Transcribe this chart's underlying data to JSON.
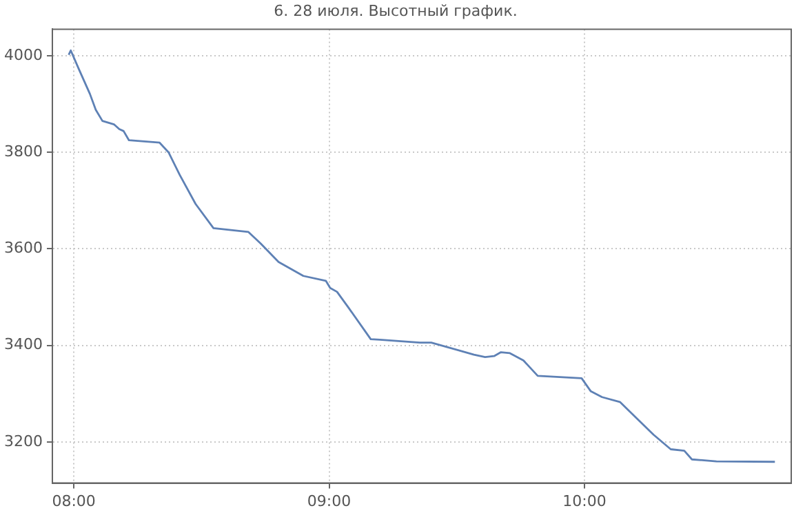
{
  "chart_data": {
    "type": "line",
    "title": "6. 28 июля. Высотный график.",
    "x": [
      7.98,
      7.988,
      8.02,
      8.063,
      8.086,
      8.112,
      8.157,
      8.178,
      8.195,
      8.216,
      8.336,
      8.371,
      8.415,
      8.477,
      8.547,
      8.684,
      8.732,
      8.802,
      8.899,
      8.987,
      9.004,
      9.031,
      9.075,
      9.163,
      9.198,
      9.356,
      9.4,
      9.567,
      9.611,
      9.646,
      9.673,
      9.708,
      9.761,
      9.817,
      9.989,
      10.025,
      10.069,
      10.139,
      10.201,
      10.271,
      10.338,
      10.391,
      10.421,
      10.517,
      10.746
    ],
    "series": [
      {
        "color": "#5e81b5",
        "values": [
          4002,
          4011,
          3972,
          3921,
          3888,
          3865,
          3858,
          3848,
          3844,
          3825,
          3820,
          3800,
          3753,
          3693,
          3643,
          3635,
          3611,
          3573,
          3544,
          3534,
          3519,
          3511,
          3479,
          3413,
          3412,
          3406,
          3406,
          3381,
          3376,
          3378,
          3386,
          3384,
          3369,
          3337,
          3332,
          3305,
          3293,
          3283,
          3251,
          3215,
          3185,
          3182,
          3164,
          3160,
          3159
        ]
      }
    ],
    "xlim": [
      7.916,
      10.81
    ],
    "xticks": [
      {
        "value": 8,
        "label": "08:00"
      },
      {
        "value": 9,
        "label": "09:00"
      },
      {
        "value": 10,
        "label": "10:00"
      }
    ],
    "ylim": [
      3115,
      4055
    ],
    "yticks": [
      3200,
      3400,
      3600,
      3800,
      4000
    ],
    "grid": true,
    "legend": false,
    "marker": "none",
    "line_style": "solid"
  }
}
